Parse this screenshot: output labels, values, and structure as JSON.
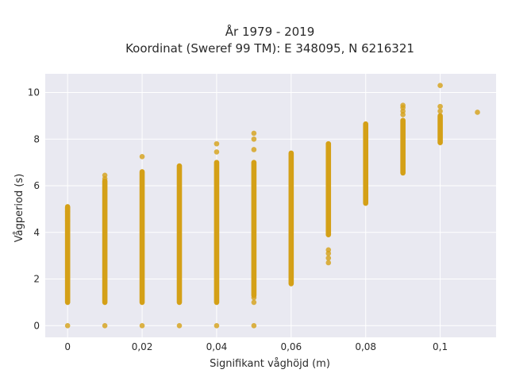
{
  "chart_data": {
    "type": "scatter",
    "title_line1": "År 1979 - 2019",
    "title_line2": "Koordinat (Sweref 99 TM): E 348095, N 6216321",
    "xlabel": "Signifikant våghöjd (m)",
    "ylabel": "Vågperiod (s)",
    "xlim": [
      -0.006,
      0.115
    ],
    "ylim": [
      -0.5,
      10.8
    ],
    "grid": true,
    "x_ticks": [
      0,
      0.02,
      0.04,
      0.06,
      0.08,
      0.1
    ],
    "x_tick_labels": [
      "0",
      "0,02",
      "0,04",
      "0,06",
      "0,08",
      "0,1"
    ],
    "y_ticks": [
      0,
      2,
      4,
      6,
      8,
      10
    ],
    "y_tick_labels": [
      "0",
      "2",
      "4",
      "6",
      "8",
      "10"
    ],
    "marker_color": "#D4A017",
    "background_color": "#E9E9F1",
    "series": [
      {
        "columns": [
          {
            "x": 0.0,
            "y_range": [
              1.0,
              5.1
            ],
            "points": [
              0,
              4.5,
              4.9,
              5.05
            ]
          },
          {
            "x": 0.01,
            "y_range": [
              1.0,
              6.2
            ],
            "points": [
              0,
              6.3,
              6.45
            ]
          },
          {
            "x": 0.02,
            "y_range": [
              1.0,
              6.6
            ],
            "points": [
              0,
              7.25
            ]
          },
          {
            "x": 0.03,
            "y_range": [
              1.0,
              6.85
            ],
            "points": [
              0
            ]
          },
          {
            "x": 0.04,
            "y_range": [
              1.0,
              7.0
            ],
            "points": [
              0,
              7.45,
              7.8
            ]
          },
          {
            "x": 0.05,
            "y_range": [
              1.3,
              7.0
            ],
            "points": [
              0,
              1.0,
              1.2,
              7.55,
              8.0,
              8.25
            ]
          },
          {
            "x": 0.06,
            "y_range": [
              1.8,
              7.4
            ],
            "points": []
          },
          {
            "x": 0.07,
            "y_range": [
              3.9,
              7.8
            ],
            "points": [
              2.7,
              2.9,
              3.1,
              3.25
            ]
          },
          {
            "x": 0.08,
            "y_range": [
              5.25,
              8.65
            ],
            "points": []
          },
          {
            "x": 0.09,
            "y_range": [
              6.55,
              8.8
            ],
            "points": [
              9.05,
              9.2,
              9.35,
              9.45
            ]
          },
          {
            "x": 0.1,
            "y_range": [
              7.85,
              9.0
            ],
            "points": [
              9.2,
              9.4,
              10.3
            ]
          },
          {
            "x": 0.11,
            "y_range": null,
            "points": [
              9.15
            ]
          }
        ]
      }
    ]
  }
}
